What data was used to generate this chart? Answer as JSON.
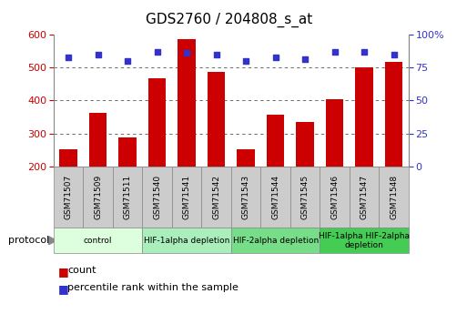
{
  "title": "GDS2760 / 204808_s_at",
  "samples": [
    "GSM71507",
    "GSM71509",
    "GSM71511",
    "GSM71540",
    "GSM71541",
    "GSM71542",
    "GSM71543",
    "GSM71544",
    "GSM71545",
    "GSM71546",
    "GSM71547",
    "GSM71548"
  ],
  "counts": [
    253,
    362,
    288,
    468,
    587,
    487,
    253,
    356,
    335,
    405,
    500,
    518
  ],
  "percentile_ranks": [
    83,
    85,
    80,
    87,
    86,
    85,
    80,
    83,
    81,
    87,
    87,
    85
  ],
  "bar_color": "#cc0000",
  "dot_color": "#3333cc",
  "ylim_left": [
    200,
    600
  ],
  "ylim_right": [
    0,
    100
  ],
  "yticks_left": [
    200,
    300,
    400,
    500,
    600
  ],
  "yticks_right": [
    0,
    25,
    50,
    75,
    100
  ],
  "grid_values": [
    300,
    400,
    500
  ],
  "protocols": [
    {
      "label": "control",
      "start": 0,
      "end": 2,
      "color": "#ddffdd"
    },
    {
      "label": "HIF-1alpha depletion",
      "start": 3,
      "end": 5,
      "color": "#aaeebb"
    },
    {
      "label": "HIF-2alpha depletion",
      "start": 6,
      "end": 8,
      "color": "#77dd88"
    },
    {
      "label": "HIF-1alpha HIF-2alpha\ndepletion",
      "start": 9,
      "end": 11,
      "color": "#44cc55"
    }
  ],
  "legend_count_color": "#cc0000",
  "legend_dot_color": "#3333cc",
  "tick_label_color_left": "#cc0000",
  "tick_label_color_right": "#3333cc",
  "protocol_label": "protocol",
  "tick_box_color": "#cccccc",
  "tick_box_edge": "#888888"
}
